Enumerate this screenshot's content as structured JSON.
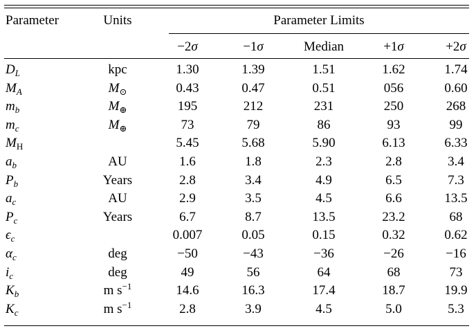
{
  "headers": {
    "parameter": "Parameter",
    "units": "Units",
    "limits": "Parameter Limits",
    "columns": [
      "−2σ",
      "−1σ",
      "Median",
      "+1σ",
      "+2σ"
    ]
  },
  "rows": [
    {
      "param": "D",
      "sub": "L",
      "unit": "kpc",
      "values": [
        "1.30",
        "1.39",
        "1.51",
        "1.62",
        "1.74"
      ]
    },
    {
      "param": "M",
      "sub": "A",
      "unit": "M⊙",
      "values": [
        "0.43",
        "0.47",
        "0.51",
        "056",
        "0.60"
      ]
    },
    {
      "param": "m",
      "sub": "b",
      "unit": "M⊕",
      "values": [
        "195",
        "212",
        "231",
        "250",
        "268"
      ]
    },
    {
      "param": "m",
      "sub": "c",
      "unit": "M⊕",
      "values": [
        "73",
        "79",
        "86",
        "93",
        "99"
      ]
    },
    {
      "param": "M",
      "sub": "H",
      "unit": "",
      "values": [
        "5.45",
        "5.68",
        "5.90",
        "6.13",
        "6.33"
      ]
    },
    {
      "param": "a",
      "sub": "b",
      "unit": "AU",
      "values": [
        "1.6",
        "1.8",
        "2.3",
        "2.8",
        "3.4"
      ]
    },
    {
      "param": "P",
      "sub": "b",
      "unit": "Years",
      "values": [
        "2.8",
        "3.4",
        "4.9",
        "6.5",
        "7.3"
      ]
    },
    {
      "param": "a",
      "sub": "c",
      "unit": "AU",
      "values": [
        "2.9",
        "3.5",
        "4.5",
        "6.6",
        "13.5"
      ]
    },
    {
      "param": "P",
      "sub": "c",
      "unit": "Years",
      "values": [
        "6.7",
        "8.7",
        "13.5",
        "23.2",
        "68"
      ]
    },
    {
      "param": "ϵ",
      "sub": "c",
      "unit": "",
      "values": [
        "0.007",
        "0.05",
        "0.15",
        "0.32",
        "0.62"
      ]
    },
    {
      "param": "α",
      "sub": "c",
      "unit": "deg",
      "values": [
        "−50",
        "−43",
        "−36",
        "−26",
        "−16"
      ]
    },
    {
      "param": "i",
      "sub": "c",
      "unit": "deg",
      "values": [
        "49",
        "56",
        "64",
        "68",
        "73"
      ]
    },
    {
      "param": "K",
      "sub": "b",
      "unit": "m s−1",
      "values": [
        "14.6",
        "16.3",
        "17.4",
        "18.7",
        "19.9"
      ]
    },
    {
      "param": "K",
      "sub": "c",
      "unit": "m s−1",
      "values": [
        "2.8",
        "3.9",
        "4.5",
        "5.0",
        "5.3"
      ]
    }
  ]
}
